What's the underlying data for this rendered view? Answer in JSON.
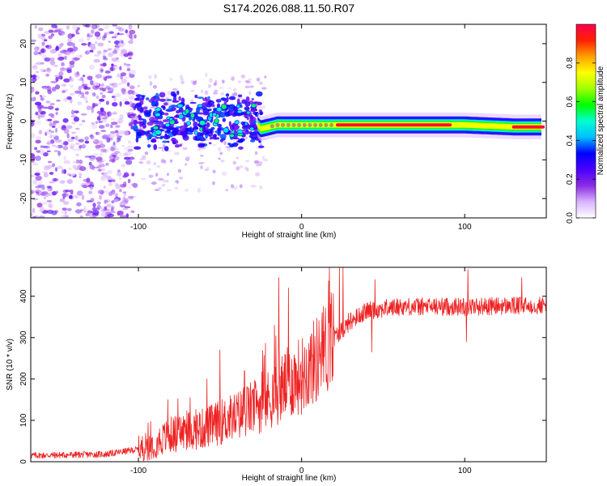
{
  "figure_title": "S174.2026.088.11.50.R07",
  "chart_data": [
    {
      "type": "heatmap",
      "name": "spectrogram",
      "title": "S174.2026.088.11.50.R07",
      "xlabel": "Height of straight line (km)",
      "ylabel": "Frequency (Hz)",
      "xlim": [
        -166,
        150
      ],
      "ylim": [
        -25,
        25
      ],
      "xticks": [
        -100,
        0,
        100
      ],
      "yticks": [
        -20,
        -10,
        0,
        10,
        20
      ],
      "xtick_labels": [
        "-100",
        "0",
        "100"
      ],
      "ytick_labels": [
        "-20",
        "-10",
        "0",
        "10",
        "20"
      ],
      "dominant_ridge": [
        {
          "x": -30,
          "y": 0.5
        },
        {
          "x": -25,
          "y": -2
        },
        {
          "x": -15,
          "y": -1
        },
        {
          "x": 0,
          "y": -1
        },
        {
          "x": 20,
          "y": -1
        },
        {
          "x": 90,
          "y": -1
        },
        {
          "x": 100,
          "y": -1
        },
        {
          "x": 130,
          "y": -1.5
        },
        {
          "x": 148,
          "y": -1.5
        }
      ],
      "colorbar": {
        "label": "Normalized spectral amplitude",
        "range": [
          0,
          1
        ],
        "ticks": [
          0.0,
          0.2,
          0.4,
          0.6,
          0.8
        ],
        "tick_labels": [
          "0.0",
          "0.2",
          "0.4",
          "0.6",
          "0.8"
        ],
        "colormap": [
          "#ffffff",
          "#d9b3ff",
          "#8a2be2",
          "#4b00ff",
          "#0000ff",
          "#00bfff",
          "#00ffd0",
          "#00ff00",
          "#a0ff00",
          "#ffff00",
          "#ffa000",
          "#ff2000",
          "#ff0050"
        ]
      }
    },
    {
      "type": "line",
      "name": "snr",
      "title": "",
      "xlabel": "Height of straight line (km)",
      "ylabel": "SNR (10 * v/v)",
      "xlim": [
        -166,
        150
      ],
      "ylim": [
        0,
        470
      ],
      "xticks": [
        -100,
        0,
        100
      ],
      "yticks": [
        0,
        100,
        200,
        300,
        400
      ],
      "xtick_labels": [
        "-100",
        "0",
        "100"
      ],
      "ytick_labels": [
        "0",
        "100",
        "200",
        "300",
        "400"
      ],
      "series": [
        {
          "name": "SNR",
          "color": "#ee2222",
          "baseline": [
            {
              "x": -166,
              "y": 15
            },
            {
              "x": -120,
              "y": 18
            },
            {
              "x": -100,
              "y": 30
            },
            {
              "x": -90,
              "y": 45
            },
            {
              "x": -80,
              "y": 65
            },
            {
              "x": -70,
              "y": 75
            },
            {
              "x": -60,
              "y": 80
            },
            {
              "x": -50,
              "y": 95
            },
            {
              "x": -40,
              "y": 110
            },
            {
              "x": -30,
              "y": 130
            },
            {
              "x": -20,
              "y": 150
            },
            {
              "x": -10,
              "y": 185
            },
            {
              "x": 0,
              "y": 210
            },
            {
              "x": 10,
              "y": 250
            },
            {
              "x": 20,
              "y": 300
            },
            {
              "x": 30,
              "y": 340
            },
            {
              "x": 40,
              "y": 365
            },
            {
              "x": 60,
              "y": 375
            },
            {
              "x": 100,
              "y": 375
            },
            {
              "x": 150,
              "y": 378
            }
          ],
          "spikes": [
            {
              "x": -82,
              "y": 150
            },
            {
              "x": -58,
              "y": 200
            },
            {
              "x": -50,
              "y": 270
            },
            {
              "x": -35,
              "y": 220
            },
            {
              "x": -14,
              "y": 445
            },
            {
              "x": -8,
              "y": 420
            },
            {
              "x": 5,
              "y": 270
            },
            {
              "x": 45,
              "y": 440
            },
            {
              "x": 102,
              "y": 465
            },
            {
              "x": 135,
              "y": 445
            }
          ],
          "dips": [
            {
              "x": 43,
              "y": 265
            },
            {
              "x": 101,
              "y": 290
            }
          ]
        }
      ]
    }
  ]
}
